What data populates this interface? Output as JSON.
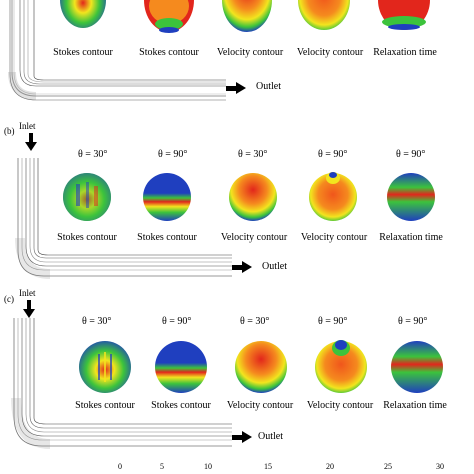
{
  "panels": [
    {
      "letter": "",
      "inlet": "",
      "outlet": "Outlet",
      "thetas": [],
      "captions": [
        "Stokes contour",
        "Stokes contour",
        "Velocity contour",
        "Velocity contour",
        "Relaxation time"
      ]
    },
    {
      "letter": "(b)",
      "inlet": "Inlet",
      "outlet": "Outlet",
      "thetas": [
        "θ = 30°",
        "θ = 90°",
        "θ = 30°",
        "θ = 90°",
        "θ = 90°"
      ],
      "captions": [
        "Stokes contour",
        "Stokes contour",
        "Velocity contour",
        "Velocity contour",
        "Relaxation time"
      ]
    },
    {
      "letter": "(c)",
      "inlet": "Inlet",
      "outlet": "Outlet",
      "thetas": [
        "θ = 30°",
        "θ = 90°",
        "θ = 30°",
        "θ = 90°",
        "θ = 90°"
      ],
      "captions": [
        "Stokes contour",
        "Stokes contour",
        "Velocity contour",
        "Velocity contour",
        "Relaxation time"
      ]
    }
  ],
  "scale_ticks": [
    "0",
    "5",
    "10",
    "15",
    "20",
    "25",
    "30"
  ],
  "colors": {
    "blue": "#1f3fbf",
    "green": "#3cc33c",
    "yellow": "#f2e51e",
    "orange": "#f58a1e",
    "red": "#e2261c",
    "pipe": "#7a7a7a"
  }
}
